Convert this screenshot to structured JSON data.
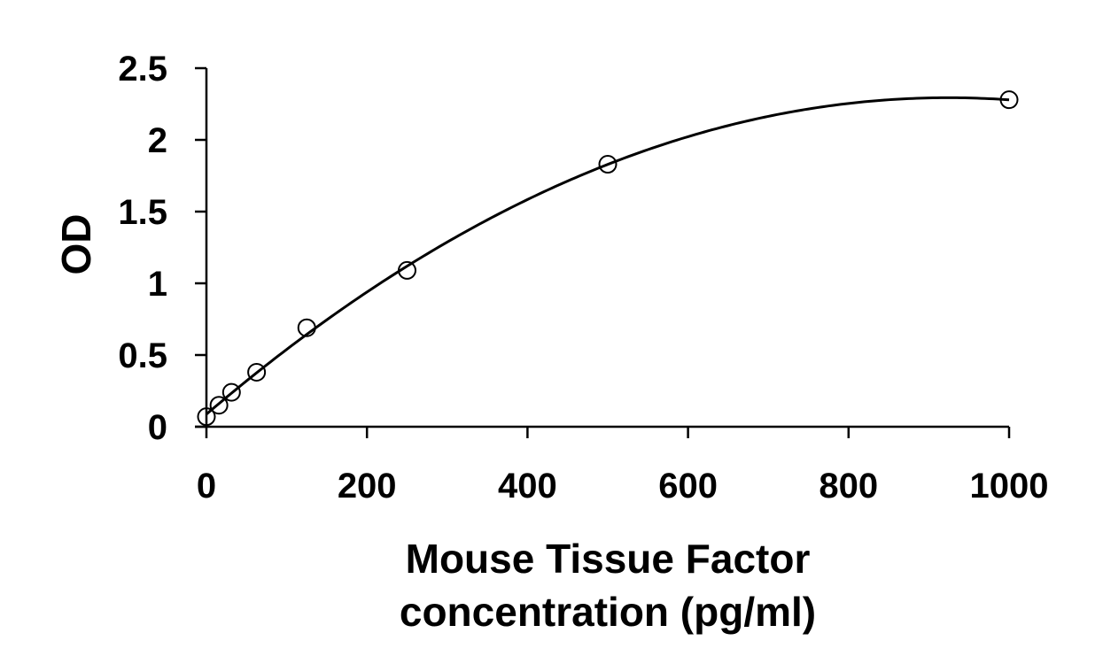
{
  "chart_data": {
    "type": "scatter",
    "title": "",
    "xlabel_lines": [
      "Mouse Tissue Factor",
      "concentration (pg/ml)"
    ],
    "ylabel": "OD",
    "xlim": [
      0,
      1000
    ],
    "ylim": [
      0,
      2.5
    ],
    "x_ticks": [
      0,
      200,
      400,
      600,
      800,
      1000
    ],
    "x_tick_labels": [
      "0",
      "200",
      "400",
      "600",
      "800",
      "1000"
    ],
    "y_ticks": [
      0,
      0.5,
      1,
      1.5,
      2,
      2.5
    ],
    "y_tick_labels": [
      "0",
      "0.5",
      "1",
      "1.5",
      "2",
      "2.5"
    ],
    "grid": false,
    "legend": "none",
    "series": [
      {
        "marker": "open-circle",
        "x": [
          0,
          15.6,
          31.25,
          62.5,
          125,
          250,
          500,
          1000
        ],
        "y": [
          0.07,
          0.15,
          0.24,
          0.38,
          0.69,
          1.09,
          1.83,
          2.28
        ],
        "fit_line": "smooth-curve"
      }
    ]
  }
}
